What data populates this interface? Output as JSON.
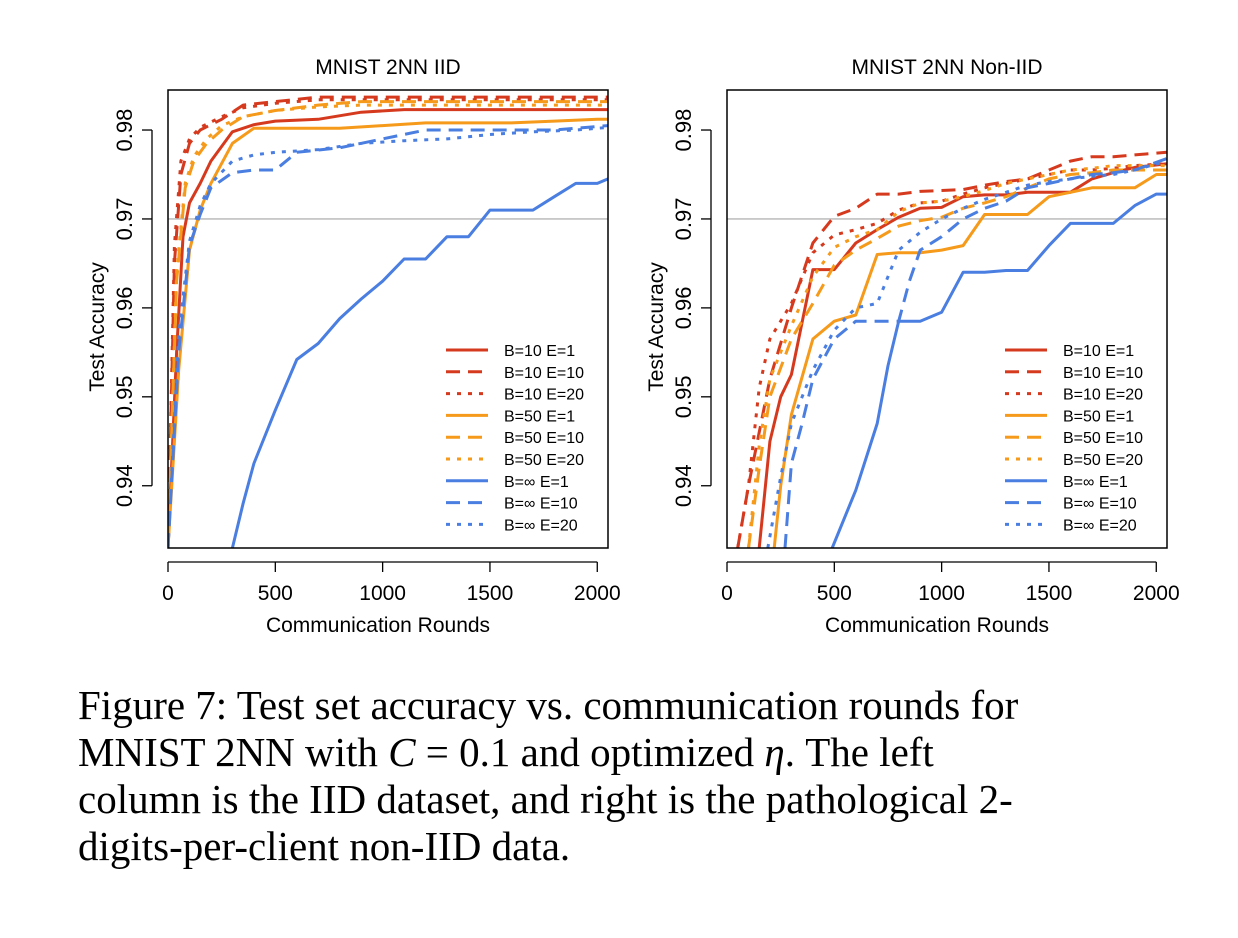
{
  "chart_data": [
    {
      "type": "line",
      "title": "MNIST 2NN IID",
      "xlabel": "Communication Rounds",
      "ylabel": "Test Accuracy",
      "xlim": [
        0,
        2050
      ],
      "ylim": [
        0.933,
        0.9845
      ],
      "xticks": [
        "0",
        "500",
        "1000",
        "1500",
        "2000"
      ],
      "yticks": [
        "0.94",
        "0.95",
        "0.96",
        "0.97",
        "0.98"
      ],
      "reference_line": 0.97,
      "legend_position": "bottom-right",
      "series": [
        {
          "name": "B=10  E=1",
          "color": "#d63a1e",
          "dash": "solid",
          "x": [
            0,
            40,
            70,
            100,
            150,
            200,
            300,
            400,
            500,
            700,
            900,
            1100,
            1300,
            1500,
            1700,
            1900,
            2050
          ],
          "y": [
            0.933,
            0.955,
            0.968,
            0.9718,
            0.974,
            0.9765,
            0.9798,
            0.9806,
            0.981,
            0.9812,
            0.982,
            0.9823,
            0.9823,
            0.9823,
            0.9823,
            0.9823,
            0.9823
          ]
        },
        {
          "name": "B=10  E=10",
          "color": "#d63a1e",
          "dash": "long",
          "x": [
            0,
            30,
            60,
            100,
            150,
            250,
            350,
            500,
            700,
            900,
            1100,
            1300,
            1500,
            1700,
            1900,
            2050
          ],
          "y": [
            0.933,
            0.965,
            0.975,
            0.9785,
            0.98,
            0.9812,
            0.9828,
            0.9832,
            0.9837,
            0.9837,
            0.9837,
            0.9837,
            0.9837,
            0.9837,
            0.9837,
            0.9837
          ]
        },
        {
          "name": "B=10  E=20",
          "color": "#d63a1e",
          "dash": "dot",
          "x": [
            0,
            30,
            60,
            100,
            150,
            250,
            350,
            500,
            700,
            900,
            1100,
            1300,
            1500,
            1700,
            1900,
            2050
          ],
          "y": [
            0.933,
            0.967,
            0.9765,
            0.979,
            0.9803,
            0.9815,
            0.9825,
            0.983,
            0.9834,
            0.9834,
            0.9834,
            0.9834,
            0.9834,
            0.9834,
            0.9834,
            0.9834
          ]
        },
        {
          "name": "B=50  E=1",
          "color": "#f59a1a",
          "dash": "solid",
          "x": [
            0,
            50,
            100,
            150,
            200,
            300,
            400,
            600,
            800,
            1000,
            1200,
            1400,
            1600,
            1800,
            2000,
            2050
          ],
          "y": [
            0.933,
            0.953,
            0.9665,
            0.971,
            0.974,
            0.9785,
            0.9802,
            0.9802,
            0.9802,
            0.9805,
            0.9808,
            0.9808,
            0.9808,
            0.981,
            0.9812,
            0.9812
          ]
        },
        {
          "name": "B=50  E=10",
          "color": "#f59a1a",
          "dash": "long",
          "x": [
            0,
            40,
            80,
            120,
            180,
            250,
            350,
            500,
            700,
            900,
            1100,
            1300,
            1500,
            1700,
            1900,
            2050
          ],
          "y": [
            0.933,
            0.963,
            0.9735,
            0.9765,
            0.9785,
            0.98,
            0.9815,
            0.9822,
            0.9828,
            0.9832,
            0.9832,
            0.9832,
            0.9832,
            0.9832,
            0.9832,
            0.9832
          ]
        },
        {
          "name": "B=50  E=20",
          "color": "#f59a1a",
          "dash": "dot",
          "x": [
            0,
            40,
            80,
            120,
            180,
            250,
            350,
            500,
            700,
            900,
            1100,
            1300,
            1500,
            1700,
            1900,
            2050
          ],
          "y": [
            0.933,
            0.964,
            0.974,
            0.977,
            0.979,
            0.9805,
            0.9815,
            0.9822,
            0.9826,
            0.9828,
            0.9828,
            0.9828,
            0.9828,
            0.9828,
            0.9828,
            0.9828
          ]
        },
        {
          "name": "B=∞  E=1",
          "color": "#4a7ee0",
          "dash": "solid",
          "x": [
            300,
            350,
            400,
            500,
            600,
            700,
            800,
            900,
            1000,
            1100,
            1200,
            1300,
            1400,
            1500,
            1600,
            1700,
            1800,
            1900,
            2000,
            2050
          ],
          "y": [
            0.933,
            0.938,
            0.9425,
            0.9485,
            0.9542,
            0.956,
            0.9588,
            0.961,
            0.963,
            0.9655,
            0.9655,
            0.968,
            0.968,
            0.971,
            0.971,
            0.971,
            0.9725,
            0.974,
            0.974,
            0.9745
          ]
        },
        {
          "name": "B=∞  E=10",
          "color": "#4a7ee0",
          "dash": "long",
          "x": [
            0,
            50,
            100,
            150,
            200,
            300,
            400,
            500,
            600,
            800,
            1000,
            1200,
            1400,
            1600,
            1800,
            2050
          ],
          "y": [
            0.933,
            0.955,
            0.967,
            0.9705,
            0.9735,
            0.9752,
            0.9755,
            0.9755,
            0.9775,
            0.978,
            0.979,
            0.98,
            0.98,
            0.98,
            0.98,
            0.9805
          ]
        },
        {
          "name": "B=∞  E=20",
          "color": "#4a7ee0",
          "dash": "dot",
          "x": [
            0,
            50,
            100,
            150,
            200,
            300,
            400,
            500,
            700,
            900,
            1100,
            1300,
            1500,
            1700,
            1900,
            2050
          ],
          "y": [
            0.933,
            0.957,
            0.9675,
            0.9715,
            0.974,
            0.9765,
            0.9772,
            0.9775,
            0.9778,
            0.9785,
            0.9788,
            0.979,
            0.9795,
            0.9798,
            0.98,
            0.9803
          ]
        }
      ]
    },
    {
      "type": "line",
      "title": "MNIST 2NN Non-IID",
      "xlabel": "Communication Rounds",
      "ylabel": "Test Accuracy",
      "xlim": [
        0,
        2050
      ],
      "ylim": [
        0.933,
        0.9845
      ],
      "xticks": [
        "0",
        "500",
        "1000",
        "1500",
        "2000"
      ],
      "yticks": [
        "0.94",
        "0.95",
        "0.96",
        "0.97",
        "0.98"
      ],
      "reference_line": 0.97,
      "legend_position": "bottom-right",
      "series": [
        {
          "name": "B=10  E=1",
          "color": "#d63a1e",
          "dash": "solid",
          "x": [
            150,
            200,
            250,
            300,
            400,
            500,
            600,
            700,
            800,
            900,
            1000,
            1100,
            1200,
            1300,
            1400,
            1500,
            1600,
            1700,
            1800,
            1900,
            2050
          ],
          "y": [
            0.933,
            0.945,
            0.95,
            0.9525,
            0.9643,
            0.9643,
            0.9673,
            0.9688,
            0.9702,
            0.9712,
            0.9713,
            0.9725,
            0.9727,
            0.9727,
            0.973,
            0.973,
            0.973,
            0.9745,
            0.9752,
            0.9758,
            0.9762
          ]
        },
        {
          "name": "B=10  E=10",
          "color": "#d63a1e",
          "dash": "long",
          "x": [
            50,
            100,
            200,
            300,
            400,
            500,
            600,
            700,
            800,
            900,
            1000,
            1100,
            1200,
            1300,
            1400,
            1500,
            1600,
            1700,
            1800,
            1900,
            2050
          ],
          "y": [
            0.933,
            0.94,
            0.952,
            0.96,
            0.9673,
            0.9703,
            0.9712,
            0.9728,
            0.9728,
            0.9731,
            0.9732,
            0.9733,
            0.9738,
            0.9742,
            0.9745,
            0.9755,
            0.9765,
            0.977,
            0.977,
            0.9772,
            0.9775
          ]
        },
        {
          "name": "B=10  E=20",
          "color": "#d63a1e",
          "dash": "dot",
          "x": [
            50,
            100,
            150,
            200,
            300,
            400,
            500,
            600,
            700,
            800,
            900,
            1000,
            1100,
            1200,
            1300,
            1400,
            1500,
            1600,
            1700,
            1800,
            1900,
            2050
          ],
          "y": [
            0.933,
            0.94,
            0.951,
            0.9565,
            0.9605,
            0.9662,
            0.9682,
            0.9688,
            0.9695,
            0.971,
            0.9718,
            0.972,
            0.9728,
            0.9735,
            0.974,
            0.9745,
            0.975,
            0.9755,
            0.9755,
            0.9757,
            0.976,
            0.9762
          ]
        },
        {
          "name": "B=50  E=1",
          "color": "#f59a1a",
          "dash": "solid",
          "x": [
            220,
            250,
            300,
            400,
            500,
            600,
            700,
            800,
            900,
            1000,
            1100,
            1200,
            1300,
            1400,
            1500,
            1600,
            1700,
            1800,
            1900,
            2000,
            2050
          ],
          "y": [
            0.933,
            0.94,
            0.948,
            0.9565,
            0.9585,
            0.9592,
            0.966,
            0.9662,
            0.9662,
            0.9665,
            0.967,
            0.9705,
            0.9705,
            0.9705,
            0.9725,
            0.973,
            0.9735,
            0.9735,
            0.9735,
            0.975,
            0.975
          ]
        },
        {
          "name": "B=50  E=10",
          "color": "#f59a1a",
          "dash": "long",
          "x": [
            100,
            150,
            200,
            300,
            400,
            500,
            600,
            700,
            800,
            900,
            1000,
            1100,
            1200,
            1300,
            1400,
            1500,
            1600,
            1700,
            1800,
            1900,
            2050
          ],
          "y": [
            0.933,
            0.942,
            0.95,
            0.9565,
            0.9605,
            0.9648,
            0.9665,
            0.9678,
            0.9692,
            0.9698,
            0.9702,
            0.9712,
            0.9718,
            0.9725,
            0.9735,
            0.9745,
            0.975,
            0.9752,
            0.9755,
            0.9755,
            0.9755
          ]
        },
        {
          "name": "B=50  E=20",
          "color": "#f59a1a",
          "dash": "dot",
          "x": [
            100,
            150,
            200,
            300,
            400,
            500,
            600,
            700,
            800,
            900,
            1000,
            1100,
            1200,
            1300,
            1400,
            1500,
            1600,
            1700,
            1800,
            1900,
            2050
          ],
          "y": [
            0.933,
            0.9445,
            0.952,
            0.958,
            0.9635,
            0.9668,
            0.968,
            0.9688,
            0.9708,
            0.9718,
            0.972,
            0.9725,
            0.9732,
            0.974,
            0.9745,
            0.975,
            0.9755,
            0.9757,
            0.976,
            0.976,
            0.976
          ]
        },
        {
          "name": "B=∞  E=1",
          "color": "#4a7ee0",
          "dash": "solid",
          "x": [
            490,
            600,
            700,
            750,
            800,
            900,
            1000,
            1100,
            1200,
            1300,
            1400,
            1500,
            1600,
            1700,
            1800,
            1900,
            2000,
            2050
          ],
          "y": [
            0.933,
            0.9395,
            0.947,
            0.9535,
            0.9585,
            0.9585,
            0.9595,
            0.964,
            0.964,
            0.9642,
            0.9642,
            0.967,
            0.9695,
            0.9695,
            0.9695,
            0.9715,
            0.9728,
            0.9728
          ]
        },
        {
          "name": "B=∞  E=10",
          "color": "#4a7ee0",
          "dash": "long",
          "x": [
            270,
            300,
            350,
            400,
            500,
            600,
            700,
            800,
            850,
            900,
            1000,
            1100,
            1200,
            1300,
            1400,
            1500,
            1600,
            1700,
            1800,
            1900,
            2050
          ],
          "y": [
            0.933,
            0.9425,
            0.947,
            0.952,
            0.9565,
            0.9585,
            0.9585,
            0.9585,
            0.963,
            0.9665,
            0.968,
            0.97,
            0.9712,
            0.972,
            0.9735,
            0.974,
            0.9745,
            0.975,
            0.9752,
            0.9755,
            0.9768
          ]
        },
        {
          "name": "B=∞  E=20",
          "color": "#4a7ee0",
          "dash": "dot",
          "x": [
            190,
            250,
            300,
            400,
            500,
            600,
            700,
            800,
            900,
            1000,
            1100,
            1200,
            1300,
            1400,
            1500,
            1600,
            1700,
            1800,
            1900,
            2050
          ],
          "y": [
            0.933,
            0.941,
            0.947,
            0.953,
            0.9575,
            0.96,
            0.9605,
            0.9665,
            0.9685,
            0.97,
            0.9712,
            0.9722,
            0.973,
            0.9738,
            0.9742,
            0.9745,
            0.9748,
            0.975,
            0.9755,
            0.9765
          ]
        }
      ]
    }
  ],
  "caption": {
    "line1": "Figure 7: Test set accuracy vs. communication rounds for",
    "line2_pre": "MNIST 2NN with ",
    "line2_var": "C",
    "line2_eq": " = 0.1",
    "line2_mid": " and optimized ",
    "line2_eta": "η",
    "line2_post": ".  The left",
    "line3": "column is the IID dataset, and right is the pathological 2-",
    "line4": "digits-per-client non-IID data."
  }
}
